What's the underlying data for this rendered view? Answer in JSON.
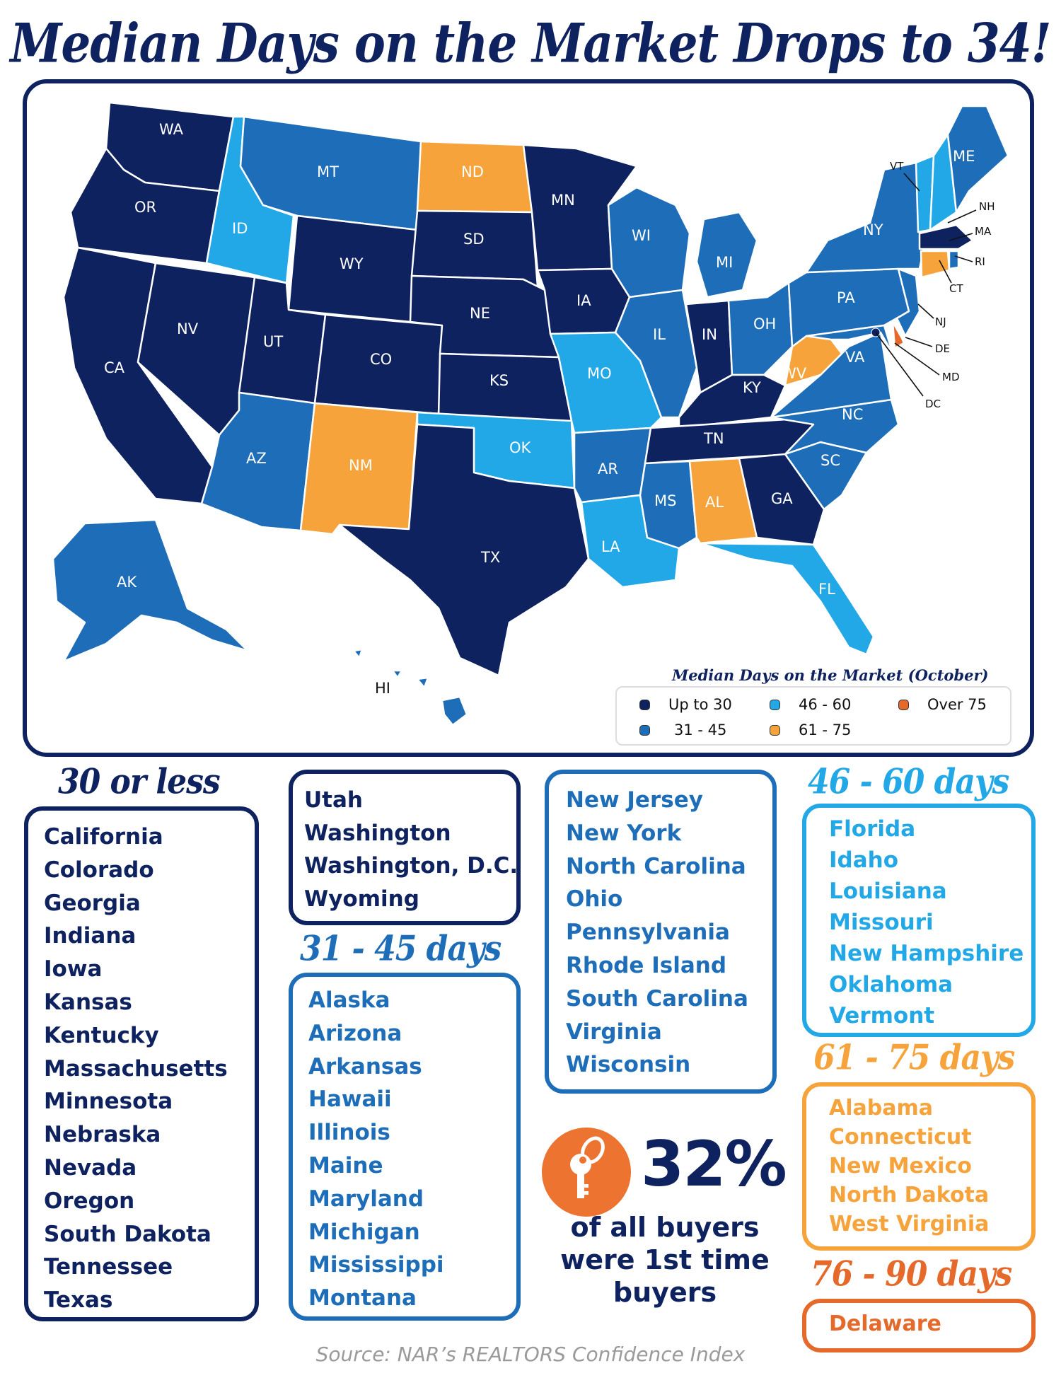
{
  "title": "Median Days on the Market Drops to 34!",
  "colors": {
    "up_to_30": "#0f2260",
    "31_45": "#1d6db8",
    "46_60": "#22a8e6",
    "61_75": "#f5a33a",
    "over_75": "#e5692a"
  },
  "map": {
    "legend": {
      "title": "Median Days on the Market (October)",
      "items": [
        {
          "label": "Up to 30",
          "color": "#0f2260"
        },
        {
          "label": "46 - 60",
          "color": "#22a8e6"
        },
        {
          "label": "Over 75",
          "color": "#e5692a"
        },
        {
          "label": "31 - 45",
          "color": "#1d6db8"
        },
        {
          "label": "61 - 75",
          "color": "#f5a33a"
        }
      ]
    },
    "state_labels": [
      "WA",
      "OR",
      "CA",
      "NV",
      "ID",
      "MT",
      "WY",
      "UT",
      "AZ",
      "CO",
      "NM",
      "ND",
      "SD",
      "NE",
      "KS",
      "OK",
      "TX",
      "MN",
      "IA",
      "MO",
      "AR",
      "LA",
      "WI",
      "IL",
      "MI",
      "IN",
      "OH",
      "KY",
      "TN",
      "MS",
      "AL",
      "GA",
      "FL",
      "SC",
      "NC",
      "VA",
      "WV",
      "PA",
      "NY",
      "VT",
      "NH",
      "ME",
      "MA",
      "RI",
      "CT",
      "NJ",
      "DE",
      "MD",
      "DC",
      "AK",
      "HI"
    ]
  },
  "chart_data": {
    "type": "choropleth",
    "title": "Median Days on the Market Drops to 34!",
    "legend_title": "Median Days on the Market (October)",
    "bins": [
      "Up to 30",
      "31 - 45",
      "46 - 60",
      "61 - 75",
      "Over 75"
    ],
    "states": {
      "Up to 30": [
        "CA",
        "CO",
        "GA",
        "IN",
        "IA",
        "KS",
        "KY",
        "MA",
        "MN",
        "NE",
        "NV",
        "OR",
        "SD",
        "TN",
        "TX",
        "UT",
        "WA",
        "DC",
        "WY"
      ],
      "31 - 45": [
        "AK",
        "AZ",
        "AR",
        "HI",
        "IL",
        "ME",
        "MD",
        "MI",
        "MS",
        "MT",
        "NJ",
        "NY",
        "NC",
        "OH",
        "PA",
        "RI",
        "SC",
        "VA",
        "WI"
      ],
      "46 - 60": [
        "FL",
        "ID",
        "LA",
        "MO",
        "NH",
        "OK",
        "VT"
      ],
      "61 - 75": [
        "AL",
        "CT",
        "NM",
        "ND",
        "WV"
      ],
      "Over 75": [
        "DE"
      ]
    }
  },
  "categories": {
    "up_to_30": {
      "heading": "30 or less",
      "states": [
        "California",
        "Colorado",
        "Georgia",
        "Indiana",
        "Iowa",
        "Kansas",
        "Kentucky",
        "Massachusetts",
        "Minnesota",
        "Nebraska",
        "Nevada",
        "Oregon",
        "South Dakota",
        "Tennessee",
        "Texas"
      ],
      "states_cont": [
        "Utah",
        "Washington",
        "Washington, D.C.",
        "Wyoming"
      ]
    },
    "d31_45": {
      "heading": "31 - 45 days",
      "states": [
        "Alaska",
        "Arizona",
        "Arkansas",
        "Hawaii",
        "Illinois",
        "Maine",
        "Maryland",
        "Michigan",
        "Mississippi",
        "Montana"
      ],
      "states_cont": [
        "New Jersey",
        "New York",
        "North Carolina",
        "Ohio",
        "Pennsylvania",
        "Rhode Island",
        "South Carolina",
        "Virginia",
        "Wisconsin"
      ]
    },
    "d46_60": {
      "heading": "46 - 60 days",
      "states": [
        "Florida",
        "Idaho",
        "Louisiana",
        "Missouri",
        "New Hampshire",
        "Oklahoma",
        "Vermont"
      ]
    },
    "d61_75": {
      "heading": "61 - 75 days",
      "states": [
        "Alabama",
        "Connecticut",
        "New Mexico",
        "North Dakota",
        "West Virginia"
      ]
    },
    "d76_90": {
      "heading": "76 - 90 days",
      "states": [
        "Delaware"
      ]
    }
  },
  "stat": {
    "icon": "key-icon",
    "value": "32%",
    "caption_lines": [
      "of all buyers",
      "were 1st time",
      "buyers"
    ]
  },
  "source": "Source: NAR’s REALTORS Confidence Index"
}
